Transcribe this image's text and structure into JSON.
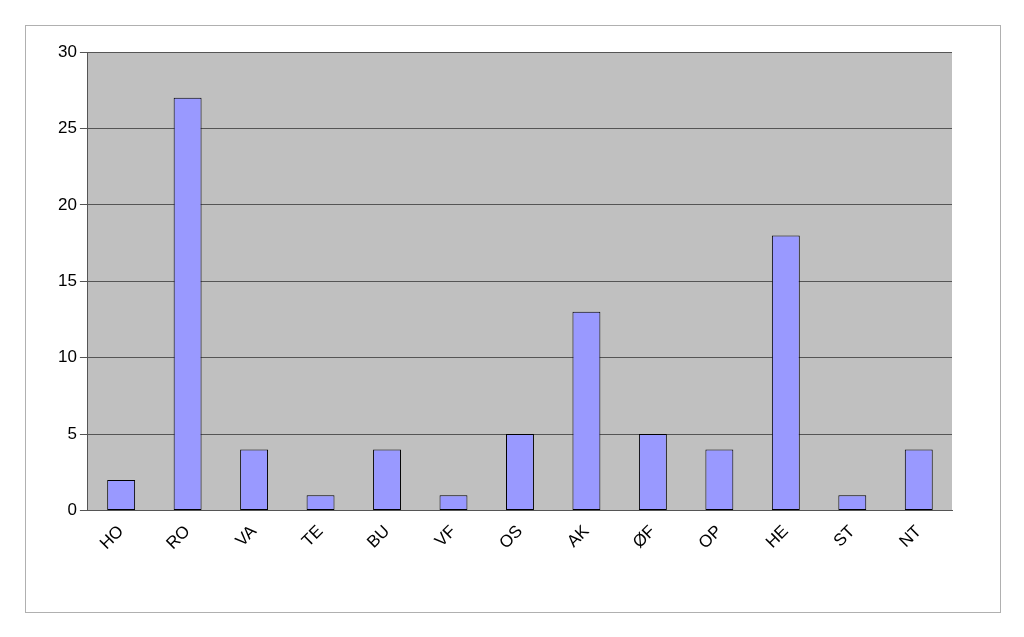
{
  "chart_data": {
    "type": "bar",
    "categories": [
      "HO",
      "RO",
      "VA",
      "TE",
      "BU",
      "VF",
      "OS",
      "AK",
      "ØF",
      "OP",
      "HE",
      "ST",
      "NT"
    ],
    "values": [
      2,
      27,
      4,
      1,
      4,
      1,
      5,
      13,
      5,
      4,
      18,
      1,
      4
    ],
    "color": "#9999ff",
    "ylim": [
      0,
      30
    ],
    "yticks": [
      0,
      5,
      10,
      15,
      20,
      25,
      30
    ],
    "grid": "y"
  }
}
